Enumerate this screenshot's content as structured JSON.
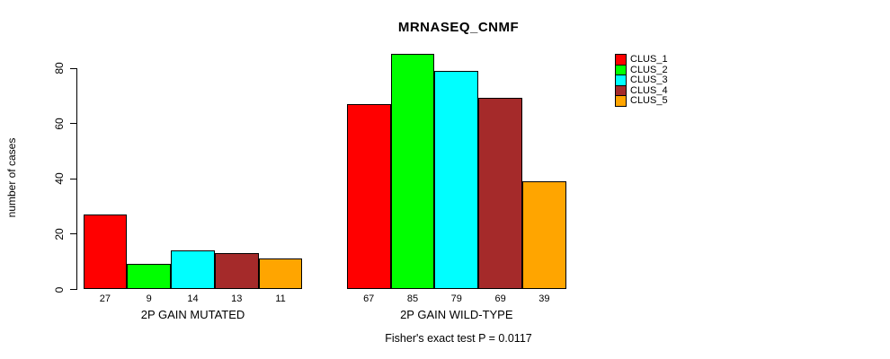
{
  "title": "MRNASEQ_CNMF",
  "chart_data": {
    "type": "bar",
    "title": "MRNASEQ_CNMF",
    "ylabel": "number of cases",
    "xlabel": "",
    "ylim": [
      0,
      80
    ],
    "yticks": [
      0,
      20,
      40,
      60,
      80
    ],
    "grid": false,
    "bar_labels_shown": true,
    "categories": [
      "2P GAIN MUTATED",
      "2P GAIN WILD-TYPE"
    ],
    "groups": [
      {
        "label": "2P GAIN MUTATED",
        "values": [
          27,
          9,
          14,
          13,
          11
        ]
      },
      {
        "label": "2P GAIN WILD-TYPE",
        "values": [
          67,
          85,
          79,
          69,
          39
        ]
      }
    ],
    "series": [
      {
        "name": "CLUS_1",
        "color": "#ff0000",
        "values": [
          27,
          67
        ]
      },
      {
        "name": "CLUS_2",
        "color": "#00ff00",
        "values": [
          9,
          85
        ]
      },
      {
        "name": "CLUS_3",
        "color": "#00ffff",
        "values": [
          14,
          79
        ]
      },
      {
        "name": "CLUS_4",
        "color": "#a52a2a",
        "values": [
          13,
          69
        ]
      },
      {
        "name": "CLUS_5",
        "color": "#ffa500",
        "values": [
          11,
          39
        ]
      }
    ],
    "legend": {
      "position": "right",
      "entries": [
        "CLUS_1",
        "CLUS_2",
        "CLUS_3",
        "CLUS_4",
        "CLUS_5"
      ],
      "colors": [
        "#ff0000",
        "#00ff00",
        "#00ffff",
        "#a52a2a",
        "#ffa500"
      ]
    },
    "footnote": "Fisher's exact test P = 0.0117",
    "colors": {
      "background": "#ffffff",
      "axis": "#000000",
      "bar_border": "#000000",
      "text": "#000000"
    }
  }
}
